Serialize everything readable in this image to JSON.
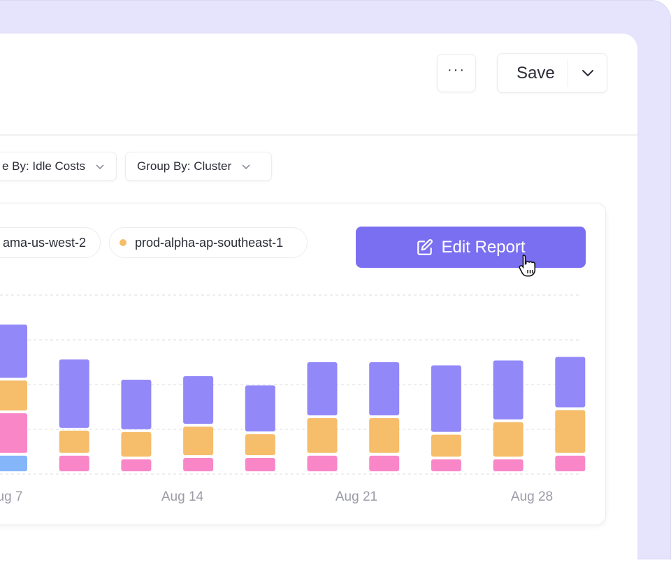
{
  "header": {
    "more_label": "···",
    "save_label": "Save"
  },
  "filters": [
    {
      "label": "e By: Idle Costs"
    },
    {
      "label": "Group By: Cluster"
    }
  ],
  "legend": [
    {
      "label": "ama-us-west-2"
    },
    {
      "label": "prod-alpha-ap-southeast-1",
      "color": "#f6bd6b"
    }
  ],
  "edit_button": {
    "label": "Edit Report",
    "icon": "edit-icon"
  },
  "colors": {
    "accent": "#7a6ff0",
    "purple": "#9388f8",
    "pink": "#f987c8",
    "orange": "#f6bd6b",
    "blue": "#85b6fa"
  },
  "chart_data": {
    "type": "bar",
    "stacked": true,
    "grid": true,
    "x_tick_labels": [
      "ug 7",
      "Aug 14",
      "Aug 21",
      "Aug 28"
    ],
    "segment_order_bottom_to_top": [
      "blue",
      "pink",
      "orange",
      "purple"
    ],
    "bars": [
      {
        "blue": 0.41,
        "pink": 0.95,
        "orange": 0.73,
        "purple": 1.25
      },
      {
        "pink": 0.41,
        "orange": 0.56,
        "purple": 1.59
      },
      {
        "pink": 0.33,
        "orange": 0.61,
        "purple": 1.17
      },
      {
        "pink": 0.36,
        "orange": 0.7,
        "purple": 1.13
      },
      {
        "pink": 0.36,
        "orange": 0.53,
        "purple": 1.09
      },
      {
        "pink": 0.41,
        "orange": 0.84,
        "purple": 1.25
      },
      {
        "pink": 0.41,
        "orange": 0.84,
        "purple": 1.25
      },
      {
        "pink": 0.33,
        "orange": 0.55,
        "purple": 1.55
      },
      {
        "pink": 0.33,
        "orange": 0.83,
        "purple": 1.38
      },
      {
        "pink": 0.41,
        "orange": 1.02,
        "purple": 1.19
      }
    ],
    "ylim": [
      0,
      4
    ]
  }
}
